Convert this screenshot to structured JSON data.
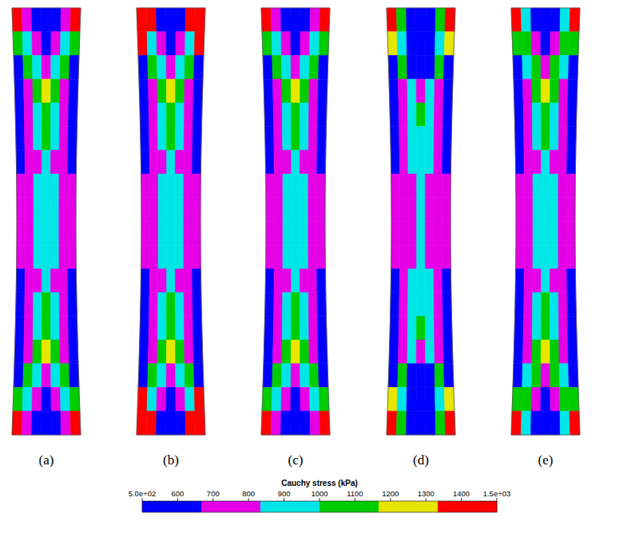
{
  "chart_data": {
    "type": "heatmap",
    "panels": [
      {
        "label": "(a)",
        "cells": [
          [
            1420,
            750,
            600,
            600,
            600,
            750,
            1420
          ],
          [
            1080,
            900,
            750,
            600,
            750,
            900,
            1080
          ],
          [
            600,
            1080,
            900,
            750,
            900,
            1080,
            600
          ],
          [
            600,
            750,
            1080,
            1250,
            1080,
            750,
            600
          ],
          [
            600,
            750,
            900,
            1080,
            900,
            750,
            600
          ],
          [
            600,
            750,
            900,
            1080,
            900,
            750,
            600
          ],
          [
            600,
            750,
            750,
            900,
            750,
            750,
            600
          ],
          [
            750,
            750,
            900,
            900,
            900,
            750,
            750
          ],
          [
            750,
            750,
            900,
            900,
            900,
            750,
            750
          ],
          [
            750,
            750,
            900,
            900,
            900,
            750,
            750
          ],
          [
            750,
            750,
            900,
            900,
            900,
            750,
            750
          ],
          [
            600,
            750,
            750,
            900,
            750,
            750,
            600
          ],
          [
            600,
            750,
            900,
            1080,
            900,
            750,
            600
          ],
          [
            600,
            750,
            900,
            1080,
            900,
            750,
            600
          ],
          [
            600,
            750,
            1080,
            1250,
            1080,
            750,
            600
          ],
          [
            600,
            1080,
            900,
            750,
            900,
            1080,
            600
          ],
          [
            1080,
            900,
            750,
            600,
            750,
            900,
            1080
          ],
          [
            1420,
            750,
            600,
            600,
            600,
            750,
            1420
          ]
        ]
      },
      {
        "label": "(b)",
        "cells": [
          [
            1420,
            1420,
            600,
            600,
            600,
            1420,
            1420
          ],
          [
            1420,
            900,
            750,
            600,
            750,
            900,
            1420
          ],
          [
            600,
            1080,
            900,
            750,
            900,
            1080,
            600
          ],
          [
            600,
            750,
            1080,
            1250,
            1080,
            750,
            600
          ],
          [
            600,
            750,
            900,
            1080,
            900,
            750,
            600
          ],
          [
            600,
            750,
            900,
            1080,
            900,
            750,
            600
          ],
          [
            600,
            750,
            750,
            900,
            750,
            750,
            600
          ],
          [
            750,
            750,
            900,
            900,
            900,
            750,
            750
          ],
          [
            750,
            750,
            900,
            900,
            900,
            750,
            750
          ],
          [
            750,
            750,
            900,
            900,
            900,
            750,
            750
          ],
          [
            750,
            750,
            900,
            900,
            900,
            750,
            750
          ],
          [
            600,
            750,
            750,
            900,
            750,
            750,
            600
          ],
          [
            600,
            750,
            900,
            1080,
            900,
            750,
            600
          ],
          [
            600,
            750,
            900,
            1080,
            900,
            750,
            600
          ],
          [
            600,
            750,
            1080,
            1250,
            1080,
            750,
            600
          ],
          [
            600,
            1080,
            900,
            750,
            900,
            1080,
            600
          ],
          [
            1420,
            900,
            750,
            600,
            750,
            900,
            1420
          ],
          [
            1420,
            1420,
            600,
            600,
            600,
            1420,
            1420
          ]
        ]
      },
      {
        "label": "(c)",
        "cells": [
          [
            1420,
            750,
            600,
            600,
            600,
            750,
            1420
          ],
          [
            1080,
            900,
            750,
            600,
            750,
            900,
            1080
          ],
          [
            600,
            1080,
            900,
            750,
            900,
            1080,
            600
          ],
          [
            600,
            750,
            1080,
            1250,
            1080,
            750,
            600
          ],
          [
            600,
            750,
            900,
            1080,
            900,
            750,
            600
          ],
          [
            600,
            750,
            900,
            1080,
            900,
            750,
            600
          ],
          [
            600,
            750,
            750,
            900,
            750,
            750,
            600
          ],
          [
            750,
            750,
            900,
            900,
            900,
            750,
            750
          ],
          [
            750,
            750,
            900,
            900,
            900,
            750,
            750
          ],
          [
            750,
            750,
            900,
            900,
            900,
            750,
            750
          ],
          [
            750,
            750,
            900,
            900,
            900,
            750,
            750
          ],
          [
            600,
            750,
            750,
            900,
            750,
            750,
            600
          ],
          [
            600,
            750,
            900,
            1080,
            900,
            750,
            600
          ],
          [
            600,
            750,
            900,
            1080,
            900,
            750,
            600
          ],
          [
            600,
            750,
            1080,
            1250,
            1080,
            750,
            600
          ],
          [
            600,
            1080,
            900,
            750,
            900,
            1080,
            600
          ],
          [
            1080,
            900,
            750,
            600,
            750,
            900,
            1080
          ],
          [
            1420,
            750,
            600,
            600,
            600,
            750,
            1420
          ]
        ]
      },
      {
        "label": "(d)",
        "cells": [
          [
            1420,
            1080,
            600,
            600,
            600,
            1080,
            1420
          ],
          [
            1250,
            900,
            600,
            600,
            600,
            900,
            1250
          ],
          [
            600,
            1080,
            600,
            600,
            600,
            1080,
            600
          ],
          [
            600,
            750,
            900,
            750,
            900,
            750,
            600
          ],
          [
            600,
            750,
            900,
            1080,
            900,
            750,
            600
          ],
          [
            600,
            750,
            900,
            900,
            900,
            750,
            600
          ],
          [
            600,
            750,
            900,
            900,
            900,
            750,
            600
          ],
          [
            750,
            750,
            750,
            900,
            750,
            750,
            750
          ],
          [
            750,
            750,
            750,
            900,
            750,
            750,
            750
          ],
          [
            750,
            750,
            750,
            900,
            750,
            750,
            750
          ],
          [
            750,
            750,
            750,
            900,
            750,
            750,
            750
          ],
          [
            600,
            750,
            900,
            900,
            900,
            750,
            600
          ],
          [
            600,
            750,
            900,
            900,
            900,
            750,
            600
          ],
          [
            600,
            750,
            900,
            1080,
            900,
            750,
            600
          ],
          [
            600,
            750,
            900,
            750,
            900,
            750,
            600
          ],
          [
            600,
            1080,
            600,
            600,
            600,
            1080,
            600
          ],
          [
            1250,
            900,
            600,
            600,
            600,
            900,
            1250
          ],
          [
            1420,
            1080,
            600,
            600,
            600,
            1080,
            1420
          ]
        ]
      },
      {
        "label": "(e)",
        "cells": [
          [
            1420,
            900,
            600,
            600,
            600,
            900,
            1420
          ],
          [
            1080,
            1080,
            750,
            600,
            750,
            1080,
            1080
          ],
          [
            600,
            900,
            1080,
            750,
            1080,
            900,
            600
          ],
          [
            600,
            750,
            1080,
            1250,
            1080,
            750,
            600
          ],
          [
            600,
            750,
            900,
            1080,
            900,
            750,
            600
          ],
          [
            600,
            750,
            900,
            1080,
            900,
            750,
            600
          ],
          [
            600,
            750,
            750,
            900,
            750,
            750,
            600
          ],
          [
            750,
            750,
            900,
            900,
            900,
            750,
            750
          ],
          [
            750,
            750,
            900,
            900,
            900,
            750,
            750
          ],
          [
            750,
            750,
            900,
            900,
            900,
            750,
            750
          ],
          [
            750,
            750,
            900,
            900,
            900,
            750,
            750
          ],
          [
            600,
            750,
            750,
            900,
            750,
            750,
            600
          ],
          [
            600,
            750,
            900,
            1080,
            900,
            750,
            600
          ],
          [
            600,
            750,
            900,
            1080,
            900,
            750,
            600
          ],
          [
            600,
            750,
            1080,
            1250,
            1080,
            750,
            600
          ],
          [
            600,
            900,
            1080,
            750,
            1080,
            900,
            600
          ],
          [
            1080,
            1080,
            750,
            600,
            750,
            1080,
            1080
          ],
          [
            1420,
            900,
            600,
            600,
            600,
            900,
            1420
          ]
        ]
      }
    ],
    "colorbar": {
      "title": "Cauchy stress (kPa)",
      "range": [
        500,
        1500
      ],
      "ticks": [
        {
          "value": 500,
          "label": "5.0e+02"
        },
        600,
        700,
        800,
        900,
        1000,
        1100,
        1200,
        1300,
        1400,
        {
          "value": 1500,
          "label": "1.5e+03"
        }
      ],
      "colors": [
        "#0000ff",
        "#e600e6",
        "#00e6e6",
        "#00cc00",
        "#e6e600",
        "#ff0000"
      ]
    }
  }
}
